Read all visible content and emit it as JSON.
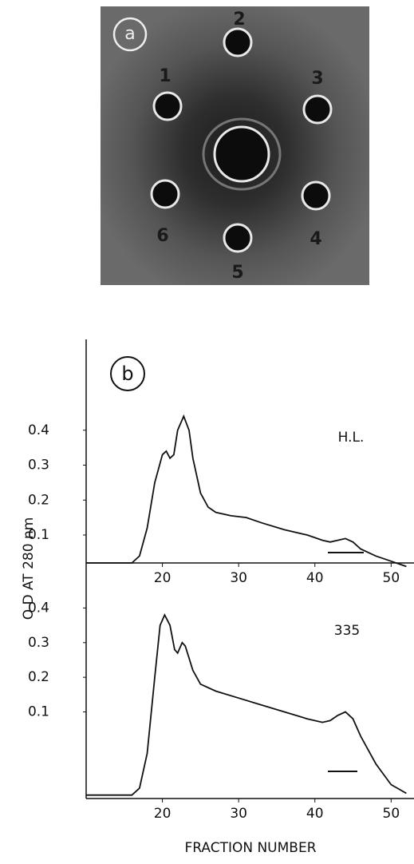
{
  "panel_a": {
    "label": "a",
    "well_labels": [
      "1",
      "2",
      "3",
      "4",
      "5",
      "6"
    ]
  },
  "panel_b": {
    "label": "b",
    "y_label": "O D AT 280 nm",
    "x_label": "FRACTION NUMBER"
  },
  "chart_data": [
    {
      "type": "line",
      "annotation": "H.L.",
      "xlim": [
        10,
        53
      ],
      "xticks": [
        20,
        30,
        40,
        50
      ],
      "ylim": [
        0.02,
        0.66
      ],
      "yticks": [
        0.1,
        0.2,
        0.3,
        0.4
      ],
      "series": [
        {
          "color": "#111111",
          "x": [
            10,
            14,
            16,
            17,
            18,
            19,
            20,
            20.5,
            21,
            21.5,
            22,
            22.8,
            23.5,
            24,
            25,
            26,
            27,
            29,
            31,
            33,
            36,
            39,
            41,
            42,
            43,
            44,
            45,
            46,
            48,
            50,
            52
          ],
          "values": [
            0.02,
            0.02,
            0.02,
            0.04,
            0.12,
            0.25,
            0.33,
            0.34,
            0.32,
            0.33,
            0.4,
            0.44,
            0.4,
            0.32,
            0.22,
            0.18,
            0.165,
            0.155,
            0.15,
            0.135,
            0.115,
            0.1,
            0.085,
            0.08,
            0.085,
            0.09,
            0.08,
            0.06,
            0.04,
            0.025,
            0.01
          ]
        }
      ]
    },
    {
      "type": "line",
      "annotation": "335",
      "xlim": [
        10,
        53
      ],
      "xticks": [
        20,
        30,
        40,
        50
      ],
      "ylim": [
        -0.15,
        0.53
      ],
      "yticks": [
        0.1,
        0.2,
        0.3,
        0.4
      ],
      "series": [
        {
          "color": "#111111",
          "x": [
            10,
            16,
            17,
            18,
            19,
            19.7,
            20.3,
            21,
            21.6,
            22,
            22.6,
            23,
            24,
            25,
            27,
            30,
            33,
            36,
            39,
            41,
            42,
            43,
            44,
            45,
            46,
            48,
            50,
            52
          ],
          "values": [
            -0.14,
            -0.14,
            -0.12,
            -0.02,
            0.2,
            0.35,
            0.38,
            0.35,
            0.28,
            0.27,
            0.3,
            0.29,
            0.22,
            0.18,
            0.16,
            0.14,
            0.12,
            0.1,
            0.08,
            0.07,
            0.075,
            0.09,
            0.1,
            0.08,
            0.03,
            -0.05,
            -0.11,
            -0.135
          ]
        }
      ]
    }
  ]
}
